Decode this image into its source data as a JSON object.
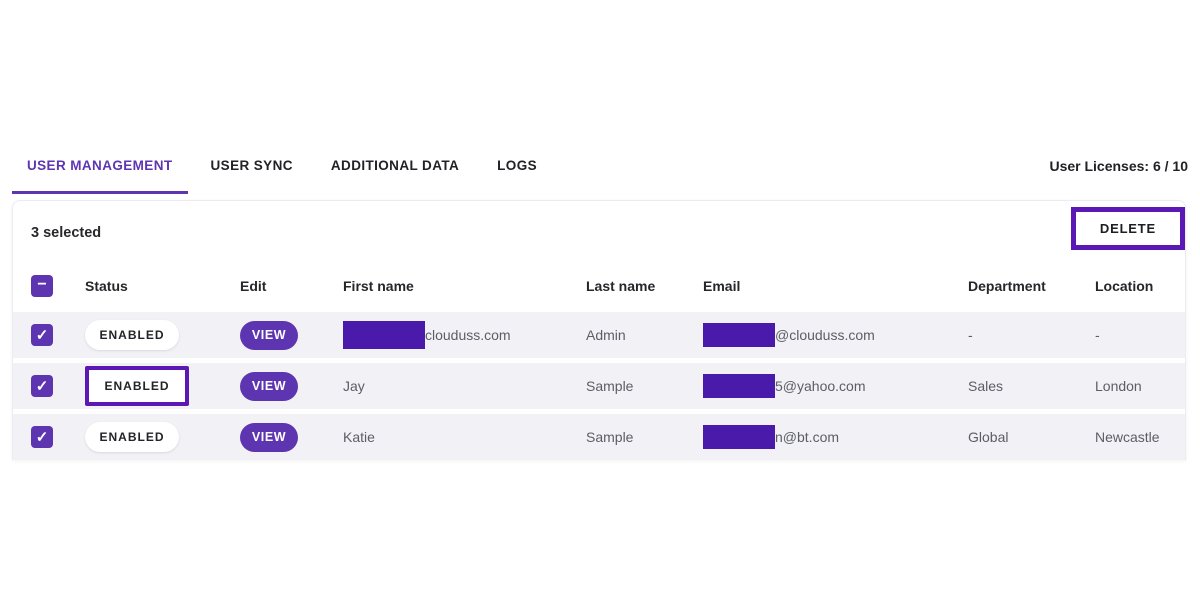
{
  "tabs": [
    {
      "label": "USER MANAGEMENT",
      "active": true
    },
    {
      "label": "USER SYNC",
      "active": false
    },
    {
      "label": "ADDITIONAL DATA",
      "active": false
    },
    {
      "label": "LOGS",
      "active": false
    }
  ],
  "licenses_text": "User Licenses: 6 / 10",
  "toolbar": {
    "selected_text": "3 selected",
    "delete_label": "DELETE"
  },
  "icons": {
    "check": "✓",
    "minus": "−"
  },
  "table": {
    "header_checkbox_state": "indeterminate",
    "columns": {
      "status": "Status",
      "edit": "Edit",
      "first_name": "First name",
      "last_name": "Last name",
      "email": "Email",
      "department": "Department",
      "location": "Location"
    },
    "rows": [
      {
        "checked": true,
        "status": "ENABLED",
        "status_highlighted": false,
        "edit": "VIEW",
        "first_name_redacted": true,
        "first_name_visible": "clouduss.com",
        "last_name": "Admin",
        "email_redacted": true,
        "email_visible": "@clouduss.com",
        "department": "-",
        "location": "-"
      },
      {
        "checked": true,
        "status": "ENABLED",
        "status_highlighted": true,
        "edit": "VIEW",
        "first_name_redacted": false,
        "first_name_visible": "Jay",
        "last_name": "Sample",
        "email_redacted": true,
        "email_visible": "5@yahoo.com",
        "department": "Sales",
        "location": "London"
      },
      {
        "checked": true,
        "status": "ENABLED",
        "status_highlighted": false,
        "edit": "VIEW",
        "first_name_redacted": false,
        "first_name_visible": "Katie",
        "last_name": "Sample",
        "email_redacted": true,
        "email_visible": "n@bt.com",
        "department": "Global",
        "location": "Newcastle"
      }
    ]
  },
  "colors": {
    "accent_purple": "#5E35B1",
    "highlight_annotation": "#5B18B4",
    "redaction_purple": "#4A1BAB",
    "row_background": "#f1f1f6",
    "text_dark": "#26262b",
    "text_gray": "#5d5d66"
  }
}
